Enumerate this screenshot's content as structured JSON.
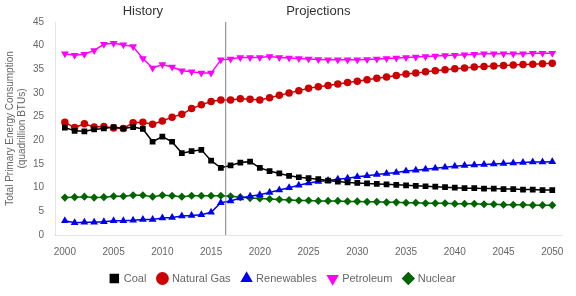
{
  "chart_data": {
    "type": "line",
    "y_label": "Total Primary Energy Consumption\n(quadrillion BTUs)",
    "x": [
      2000,
      2001,
      2002,
      2003,
      2004,
      2005,
      2006,
      2007,
      2008,
      2009,
      2010,
      2011,
      2012,
      2013,
      2014,
      2015,
      2016,
      2017,
      2018,
      2019,
      2020,
      2021,
      2022,
      2023,
      2024,
      2025,
      2026,
      2027,
      2028,
      2029,
      2030,
      2031,
      2032,
      2033,
      2034,
      2035,
      2036,
      2037,
      2038,
      2039,
      2040,
      2041,
      2042,
      2043,
      2044,
      2045,
      2046,
      2047,
      2048,
      2049,
      2050
    ],
    "series": [
      {
        "name": "Coal",
        "color": "#000000",
        "marker": "square",
        "line_style": "solid",
        "values": [
          22.7,
          22.0,
          21.9,
          22.3,
          22.5,
          22.8,
          22.5,
          22.8,
          22.4,
          19.7,
          20.8,
          19.7,
          17.3,
          17.7,
          18.0,
          15.7,
          14.2,
          14.7,
          15.3,
          15.5,
          14.2,
          13.5,
          13.0,
          12.5,
          12.2,
          12.0,
          11.8,
          11.5,
          11.3,
          11.1,
          11.0,
          10.9,
          10.8,
          10.7,
          10.6,
          10.5,
          10.4,
          10.3,
          10.2,
          10.1,
          10.0,
          9.9,
          9.9,
          9.8,
          9.8,
          9.7,
          9.7,
          9.6,
          9.6,
          9.5,
          9.5
        ]
      },
      {
        "name": "Natural Gas",
        "color": "#cc0000",
        "marker": "circle",
        "line_style": "solid",
        "values": [
          23.8,
          22.7,
          23.5,
          22.8,
          22.9,
          22.6,
          22.5,
          23.7,
          23.8,
          23.4,
          24.1,
          24.9,
          25.5,
          26.7,
          27.5,
          28.2,
          28.5,
          28.5,
          28.8,
          28.7,
          28.5,
          29.0,
          29.5,
          30.0,
          30.5,
          31.0,
          31.3,
          31.6,
          31.9,
          32.2,
          32.5,
          32.8,
          33.1,
          33.4,
          33.7,
          34.0,
          34.2,
          34.5,
          34.7,
          34.9,
          35.1,
          35.3,
          35.5,
          35.6,
          35.7,
          35.8,
          35.9,
          36.0,
          36.1,
          36.2,
          36.3
        ]
      },
      {
        "name": "Renewables",
        "color": "#0000ee",
        "marker": "triangle",
        "line_style": "solid",
        "values": [
          3.0,
          2.6,
          2.7,
          2.7,
          2.8,
          3.0,
          3.0,
          3.1,
          3.3,
          3.3,
          3.6,
          3.7,
          4.0,
          4.1,
          4.3,
          4.8,
          6.8,
          7.2,
          7.8,
          8.2,
          8.5,
          9.0,
          9.5,
          10.0,
          10.5,
          11.0,
          11.3,
          11.5,
          11.8,
          12.0,
          12.3,
          12.5,
          12.8,
          13.0,
          13.2,
          13.5,
          13.7,
          13.9,
          14.1,
          14.3,
          14.5,
          14.7,
          14.8,
          14.9,
          15.0,
          15.1,
          15.2,
          15.3,
          15.4,
          15.4,
          15.5
        ]
      },
      {
        "name": "Petroleum",
        "color": "#ff00ff",
        "marker": "triangle_down",
        "line_style": "solid",
        "values": [
          38.3,
          38.0,
          38.2,
          39.0,
          40.3,
          40.5,
          40.2,
          39.8,
          37.3,
          35.3,
          36.0,
          35.5,
          34.7,
          34.5,
          34.2,
          34.2,
          37.0,
          37.2,
          37.5,
          37.5,
          37.5,
          37.7,
          37.5,
          37.4,
          37.3,
          37.2,
          37.1,
          37.0,
          37.0,
          37.0,
          37.0,
          37.1,
          37.2,
          37.3,
          37.4,
          37.5,
          37.6,
          37.7,
          37.8,
          37.9,
          38.0,
          38.1,
          38.2,
          38.3,
          38.3,
          38.3,
          38.3,
          38.3,
          38.4,
          38.4,
          38.4
        ]
      },
      {
        "name": "Nuclear",
        "color": "#006600",
        "marker": "diamond",
        "line_style": "solid",
        "values": [
          7.9,
          8.0,
          8.1,
          7.9,
          8.0,
          8.2,
          8.2,
          8.4,
          8.4,
          8.1,
          8.4,
          8.3,
          8.1,
          8.3,
          8.3,
          8.3,
          8.3,
          8.2,
          8.0,
          7.8,
          7.7,
          7.6,
          7.5,
          7.4,
          7.3,
          7.3,
          7.2,
          7.2,
          7.2,
          7.1,
          7.1,
          7.0,
          7.0,
          6.9,
          6.9,
          6.8,
          6.8,
          6.7,
          6.7,
          6.7,
          6.6,
          6.6,
          6.6,
          6.5,
          6.5,
          6.4,
          6.4,
          6.4,
          6.3,
          6.3,
          6.3
        ]
      }
    ],
    "xlim": [
      1999,
      2051
    ],
    "xticks": [
      2000,
      2005,
      2010,
      2015,
      2020,
      2025,
      2030,
      2035,
      2040,
      2045,
      2050
    ],
    "ylim": [
      0,
      45
    ],
    "yticks": [
      0,
      5,
      10,
      15,
      20,
      25,
      30,
      35,
      40,
      45
    ],
    "divider": 2016.5,
    "annotations": [
      {
        "text": "History",
        "x": 2008
      },
      {
        "text": "Projections",
        "x": 2026
      }
    ],
    "grid": false,
    "legend": "bottom"
  }
}
